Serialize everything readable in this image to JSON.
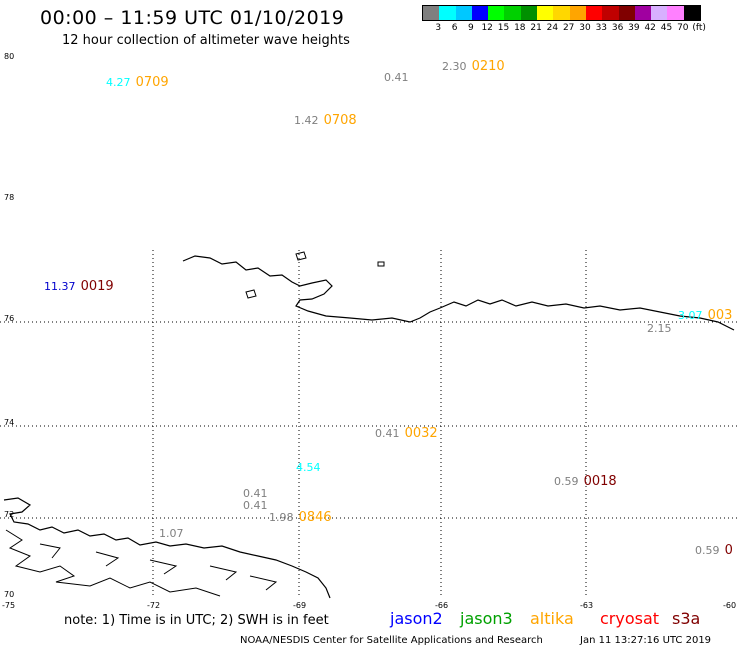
{
  "header": {
    "title": "00:00 – 11:59 UTC 01/10/2019",
    "subtitle": "12 hour collection of altimeter wave heights"
  },
  "legend": {
    "colors": [
      "#7f7f7f",
      "#00ffff",
      "#00c8ff",
      "#0000ff",
      "#00ff00",
      "#00d000",
      "#009000",
      "#ffff00",
      "#ffd700",
      "#ffa500",
      "#ff0000",
      "#c00000",
      "#800000",
      "#a000a0",
      "#d8b0ff",
      "#ff80ff",
      "#000000"
    ],
    "labels": [
      "3",
      "6",
      "9",
      "12",
      "15",
      "18",
      "21",
      "24",
      "27",
      "30",
      "33",
      "36",
      "39",
      "42",
      "45",
      "70",
      "(ft)"
    ]
  },
  "axes": {
    "lat_labels": [
      "80",
      "78",
      "76",
      "74",
      "72",
      "70"
    ],
    "lon_labels": [
      "-75",
      "-72",
      "-69",
      "-66",
      "-63",
      "-60"
    ]
  },
  "observations": [
    {
      "swh": "4.27",
      "swh_color": "#00ffff",
      "time": "0709",
      "time_color": "#ffa500"
    },
    {
      "swh": "0.41",
      "swh_color": "#7f7f7f",
      "time": "",
      "time_color": "#ffa500"
    },
    {
      "swh": "2.30",
      "swh_color": "#7f7f7f",
      "time": "0210",
      "time_color": "#ffa500"
    },
    {
      "swh": "1.42",
      "swh_color": "#7f7f7f",
      "time": "0708",
      "time_color": "#ffa500"
    },
    {
      "swh": "11.37",
      "swh_color": "#0000cc",
      "time": "0019",
      "time_color": "#800000"
    },
    {
      "swh": "3.07",
      "swh_color": "#00ffff",
      "time": "003",
      "time_color": "#ffa500"
    },
    {
      "swh": "2.15",
      "swh_color": "#7f7f7f",
      "time": "",
      "time_color": "#ffa500"
    },
    {
      "swh": "0.41",
      "swh_color": "#7f7f7f",
      "time": "0032",
      "time_color": "#ffa500"
    },
    {
      "swh": "4.54",
      "swh_color": "#00ffff",
      "time": "",
      "time_color": "#ffa500"
    },
    {
      "swh": "0.59",
      "swh_color": "#7f7f7f",
      "time": "0018",
      "time_color": "#800000"
    },
    {
      "swh": "0.41",
      "swh_color": "#7f7f7f",
      "time": "",
      "time_color": "#ffa500"
    },
    {
      "swh": "0.41",
      "swh_color": "#7f7f7f",
      "time": "",
      "time_color": "#ffa500"
    },
    {
      "swh": "1.98",
      "swh_color": "#7f7f7f",
      "time": "0846",
      "time_color": "#ffa500"
    },
    {
      "swh": "1.07",
      "swh_color": "#7f7f7f",
      "time": "",
      "time_color": "#ffa500"
    },
    {
      "swh": "0.59",
      "swh_color": "#7f7f7f",
      "time": "0",
      "time_color": "#800000"
    }
  ],
  "note": "note: 1) Time is in UTC; 2) SWH is in feet",
  "satellites": [
    {
      "name": "jason2",
      "color": "#0000ff"
    },
    {
      "name": "jason3",
      "color": "#00a000"
    },
    {
      "name": "altika",
      "color": "#ffa500"
    },
    {
      "name": "cryosat",
      "color": "#ff0000"
    },
    {
      "name": "s3a",
      "color": "#800000"
    }
  ],
  "footer": {
    "left": "NOAA/NESDIS Center for Satellite Applications and Research",
    "right": "Jan 11 13:27:16 UTC 2019"
  }
}
